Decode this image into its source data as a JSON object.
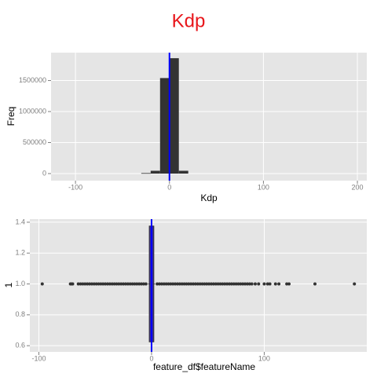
{
  "title": "Kdp",
  "chart_data": [
    {
      "type": "histogram",
      "xlabel": "Kdp",
      "ylabel": "Freq",
      "bins": [
        -30,
        -20,
        -10,
        0,
        10,
        20
      ],
      "values": [
        8000,
        45000,
        1540000,
        1860000,
        45000
      ],
      "color": "#333333",
      "vline": 0,
      "vline_color": "#0000ff",
      "xlim": [
        -126,
        210
      ],
      "xticks": [
        -100,
        0,
        100,
        200
      ],
      "ylim": [
        -114000,
        1950000
      ],
      "yticks": [
        0,
        500000,
        1000000,
        1500000
      ],
      "grid": true
    },
    {
      "type": "boxplot",
      "xlabel": "feature_df$featureName",
      "ylabel": "1",
      "position": 1,
      "box_width": 0.75,
      "whisker_low": -3,
      "q1": -2,
      "median": 0,
      "q3": 2,
      "whisker_high": 3,
      "box_color": "#3a2a9a",
      "outliers": [
        -97,
        -72,
        -71,
        -70,
        -65,
        -63,
        -61,
        -59,
        -57,
        -55,
        -53,
        -51,
        -49,
        -47,
        -45,
        -43,
        -41,
        -39,
        -37,
        -35,
        -33,
        -31,
        -29,
        -27,
        -25,
        -23,
        -21,
        -19,
        -17,
        -15,
        -13,
        -11,
        -9,
        -7,
        -5,
        5,
        7,
        9,
        11,
        13,
        15,
        17,
        19,
        21,
        23,
        25,
        27,
        29,
        31,
        33,
        35,
        37,
        39,
        41,
        43,
        45,
        47,
        49,
        51,
        53,
        55,
        57,
        59,
        61,
        63,
        65,
        67,
        69,
        71,
        73,
        75,
        77,
        79,
        81,
        83,
        85,
        87,
        89,
        92,
        95,
        100,
        103,
        105,
        110,
        113,
        120,
        122,
        145,
        180
      ],
      "point_color": "#333333",
      "vline": 0,
      "vline_color": "#0000ff",
      "xlim": [
        -108,
        191
      ],
      "xticks": [
        -100,
        0,
        100
      ],
      "ylim": [
        0.56,
        1.42
      ],
      "yticks": [
        0.6,
        0.8,
        {
          "value": 1,
          "label": "1.0"
        },
        1.2,
        1.4
      ],
      "grid": true
    }
  ]
}
